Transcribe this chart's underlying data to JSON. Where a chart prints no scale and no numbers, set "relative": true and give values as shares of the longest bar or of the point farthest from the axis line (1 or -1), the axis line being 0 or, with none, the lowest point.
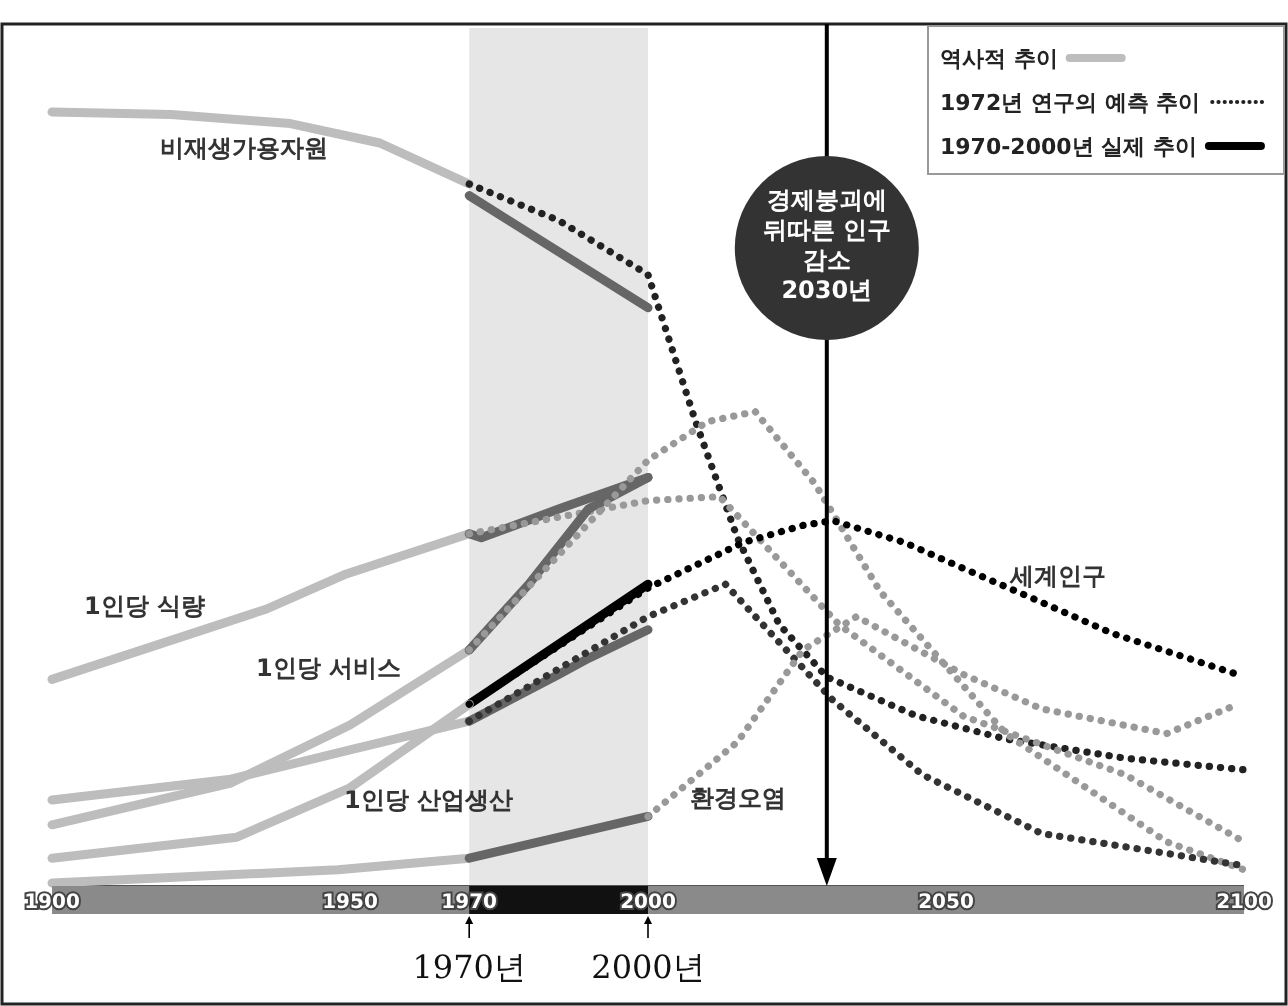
{
  "chart_data": {
    "type": "line",
    "relative": true,
    "xlim": [
      1900,
      2100
    ],
    "xticks": [
      1900,
      1950,
      1970,
      2000,
      2050,
      2100
    ],
    "legend": "top right",
    "bands": [
      {
        "axis": "x",
        "from": 1970,
        "to": 2000,
        "color": "#e6e6e6"
      }
    ],
    "ref_lines": [
      {
        "axis": "x",
        "value": 2030,
        "label": "경제붕괴에 뒤따른 인구 감소 2030년",
        "color": "#000000"
      }
    ],
    "annotations": [
      "비재생가용자원",
      "1인당 식량",
      "1인당 서비스",
      "1인당 산업생산",
      "환경오염",
      "세계인구",
      {
        "text": "1970년",
        "x": 1970
      },
      {
        "text": "2000년",
        "x": 2000
      }
    ],
    "series": [
      {
        "name": "역사적 추이",
        "color": "#bdbdbd",
        "line_style": "solid",
        "x": [
          1900,
          1920,
          1940,
          1955,
          1970
        ],
        "values": [
          1.0,
          0.997,
          0.985,
          0.96,
          0.907
        ]
      },
      {
        "name": "1972년 연구의 예측 추이",
        "color": "#222222",
        "line_style": "dotted",
        "x": [
          1970,
          1985,
          2000,
          2008,
          2015,
          2022,
          2030,
          2045,
          2060,
          2080,
          2100
        ],
        "values": [
          0.907,
          0.86,
          0.79,
          0.6,
          0.45,
          0.338,
          0.27,
          0.22,
          0.19,
          0.165,
          0.15
        ]
      },
      {
        "name": "1970-2000년 실제 추이",
        "color": "#000000",
        "line_style": "solid",
        "x": [
          1970,
          2000
        ],
        "values": [
          0.235,
          0.39
        ]
      },
      {
        "color": "#666666",
        "line_style": "solid",
        "x": [
          1970,
          2000
        ],
        "values": [
          0.892,
          0.747
        ]
      },
      {
        "color": "#bdbdbd",
        "line_style": "solid",
        "x": [
          1900,
          1936,
          1949,
          1970
        ],
        "values": [
          0.267,
          0.358,
          0.402,
          0.455
        ]
      },
      {
        "color": "#666666",
        "line_style": "solid",
        "x": [
          1970,
          1972,
          1985,
          2000
        ],
        "values": [
          0.455,
          0.45,
          0.487,
          0.528
        ]
      },
      {
        "color": "#999999",
        "line_style": "dotted",
        "x": [
          1970,
          2000,
          2012,
          2032,
          2053,
          2080,
          2100
        ],
        "values": [
          0.455,
          0.498,
          0.503,
          0.338,
          0.219,
          0.144,
          0.057
        ]
      },
      {
        "color": "#bdbdbd",
        "line_style": "solid",
        "x": [
          1900,
          1930,
          1950,
          1970
        ],
        "values": [
          0.079,
          0.133,
          0.208,
          0.305
        ]
      },
      {
        "color": "#666666",
        "line_style": "solid",
        "x": [
          1970,
          1980,
          1990,
          2000
        ],
        "values": [
          0.305,
          0.39,
          0.487,
          0.528
        ]
      },
      {
        "color": "#999999",
        "line_style": "dotted",
        "x": [
          1970,
          2000,
          2010,
          2018,
          2028,
          2039,
          2060,
          2087,
          2100
        ],
        "values": [
          0.305,
          0.55,
          0.6,
          0.613,
          0.52,
          0.38,
          0.197,
          0.057,
          0.021
        ]
      },
      {
        "color": "#bdbdbd",
        "line_style": "solid",
        "x": [
          1900,
          1930,
          1950,
          1970
        ],
        "values": [
          0.111,
          0.138,
          0.176,
          0.213
        ]
      },
      {
        "color": "#666666",
        "line_style": "solid",
        "x": [
          1970,
          1985,
          1990,
          2000
        ],
        "values": [
          0.213,
          0.273,
          0.294,
          0.331
        ]
      },
      {
        "color": "#333333",
        "line_style": "dotted",
        "x": [
          1970,
          2000,
          2013,
          2031,
          2046,
          2066,
          2100
        ],
        "values": [
          0.213,
          0.348,
          0.39,
          0.24,
          0.144,
          0.068,
          0.026
        ]
      },
      {
        "color": "#bdbdbd",
        "line_style": "solid",
        "x": [
          1900,
          1931,
          1950,
          1970
        ],
        "values": [
          0.036,
          0.063,
          0.127,
          0.235
        ]
      },
      {
        "color": "#000000",
        "line_style": "dotted",
        "x": [
          1970,
          2000,
          2016,
          2026,
          2031,
          2043,
          2053,
          2065,
          2078,
          2099
        ],
        "values": [
          0.235,
          0.385,
          0.444,
          0.466,
          0.472,
          0.444,
          0.41,
          0.37,
          0.326,
          0.273
        ]
      },
      {
        "color": "#bdbdbd",
        "line_style": "solid",
        "x": [
          1900,
          1948,
          1970
        ],
        "values": [
          0.004,
          0.021,
          0.036
        ]
      },
      {
        "color": "#666666",
        "line_style": "solid",
        "x": [
          1970,
          2000
        ],
        "values": [
          0.036,
          0.09
        ]
      },
      {
        "color": "#999999",
        "line_style": "dotted",
        "x": [
          2000,
          2015,
          2026,
          2035,
          2053,
          2066,
          2087,
          2099
        ],
        "values": [
          0.09,
          0.186,
          0.305,
          0.348,
          0.273,
          0.229,
          0.197,
          0.235
        ]
      }
    ]
  }
}
